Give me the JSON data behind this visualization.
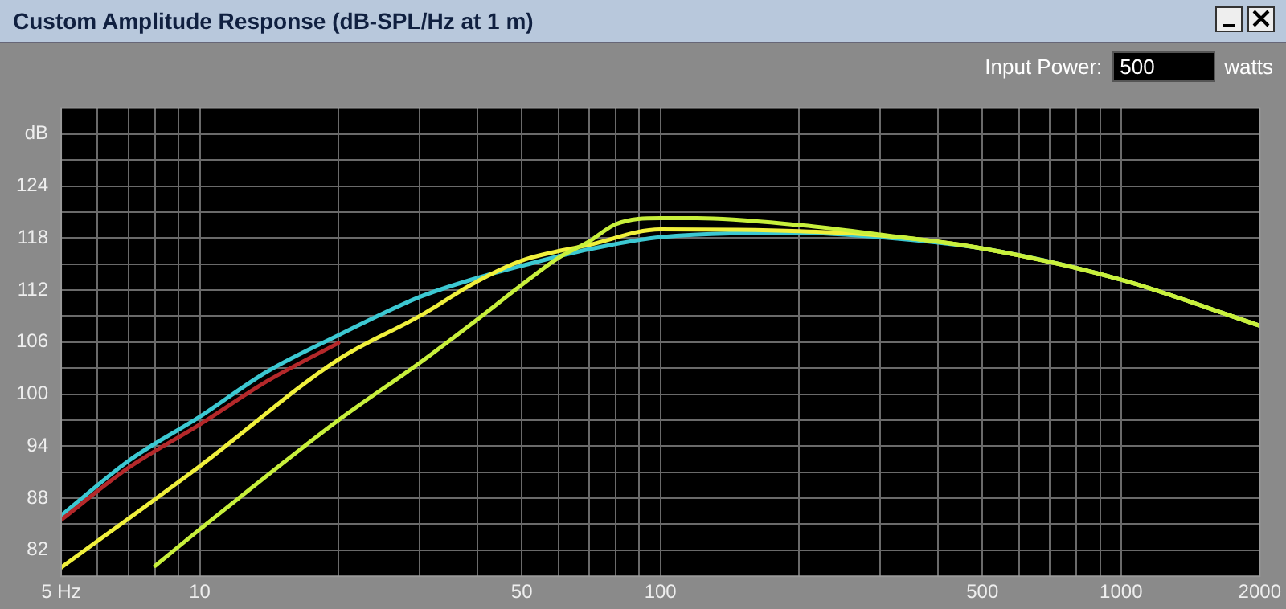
{
  "chart_data": {
    "type": "line",
    "title": "Custom Amplitude Response (dB-SPL/Hz at 1 m)",
    "annotations": [
      "Input Power:",
      "500",
      "watts"
    ],
    "log": "x",
    "grid": true,
    "legend": false,
    "marker": "none",
    "line_style": "solid",
    "xlim": [
      5,
      2000
    ],
    "xticks": [
      {
        "value": 5,
        "label": "5 Hz"
      },
      {
        "value": 6,
        "label": null
      },
      {
        "value": 7,
        "label": null
      },
      {
        "value": 8,
        "label": null
      },
      {
        "value": 9,
        "label": null
      },
      10,
      {
        "value": 20,
        "label": null
      },
      {
        "value": 30,
        "label": null
      },
      {
        "value": 40,
        "label": null
      },
      50,
      {
        "value": 60,
        "label": null
      },
      {
        "value": 70,
        "label": null
      },
      {
        "value": 80,
        "label": null
      },
      {
        "value": 90,
        "label": null
      },
      100,
      {
        "value": 200,
        "label": null
      },
      {
        "value": 300,
        "label": null
      },
      {
        "value": 400,
        "label": null
      },
      500,
      {
        "value": 600,
        "label": null
      },
      {
        "value": 700,
        "label": null
      },
      {
        "value": 800,
        "label": null
      },
      {
        "value": 900,
        "label": null
      },
      1000,
      2000
    ],
    "ylim": [
      79,
      133
    ],
    "yticks": [
      82,
      {
        "value": 85,
        "label": null
      },
      88,
      {
        "value": 91,
        "label": null
      },
      94,
      {
        "value": 97,
        "label": null
      },
      100,
      {
        "value": 103,
        "label": null
      },
      106,
      {
        "value": 109,
        "label": null
      },
      112,
      {
        "value": 115,
        "label": null
      },
      118,
      {
        "value": 121,
        "label": null
      },
      124,
      {
        "value": 127,
        "label": null
      },
      {
        "value": 130,
        "label": "dB"
      }
    ],
    "series": [
      {
        "color": "#c8f03c",
        "x": [
          8,
          10,
          20,
          30,
          40,
          50,
          60,
          70,
          80,
          100,
          120,
          200,
          300,
          500,
          1000,
          2000
        ],
        "values": [
          80.2,
          84.4,
          97,
          103.6,
          108.6,
          112.6,
          115.7,
          117.6,
          119.6,
          120.3,
          120.3,
          119.5,
          118.4,
          116.8,
          113.2,
          107.9
        ]
      },
      {
        "color": "#f0f03c",
        "x": [
          5,
          10,
          20,
          30,
          40,
          50,
          70,
          100,
          200,
          300,
          500,
          1000,
          2000
        ],
        "values": [
          80,
          91.7,
          104,
          109,
          113,
          115.4,
          117.2,
          119,
          118.8,
          118.3,
          116.8,
          113.2,
          107.9
        ]
      },
      {
        "color": "#b4282a",
        "x": [
          5,
          7,
          10,
          14,
          20
        ],
        "values": [
          85.5,
          91.5,
          96.5,
          101.5,
          105.9
        ]
      },
      {
        "color": "#3cc8d2",
        "x": [
          5,
          7,
          10,
          14,
          20,
          30,
          40,
          50,
          70,
          100,
          200,
          300,
          500,
          1000,
          2000
        ],
        "values": [
          86,
          92.3,
          97.4,
          102.6,
          106.8,
          111.2,
          113.4,
          114.8,
          116.7,
          118.1,
          118.6,
          118.1,
          116.8,
          113.2,
          107.9
        ]
      }
    ]
  }
}
